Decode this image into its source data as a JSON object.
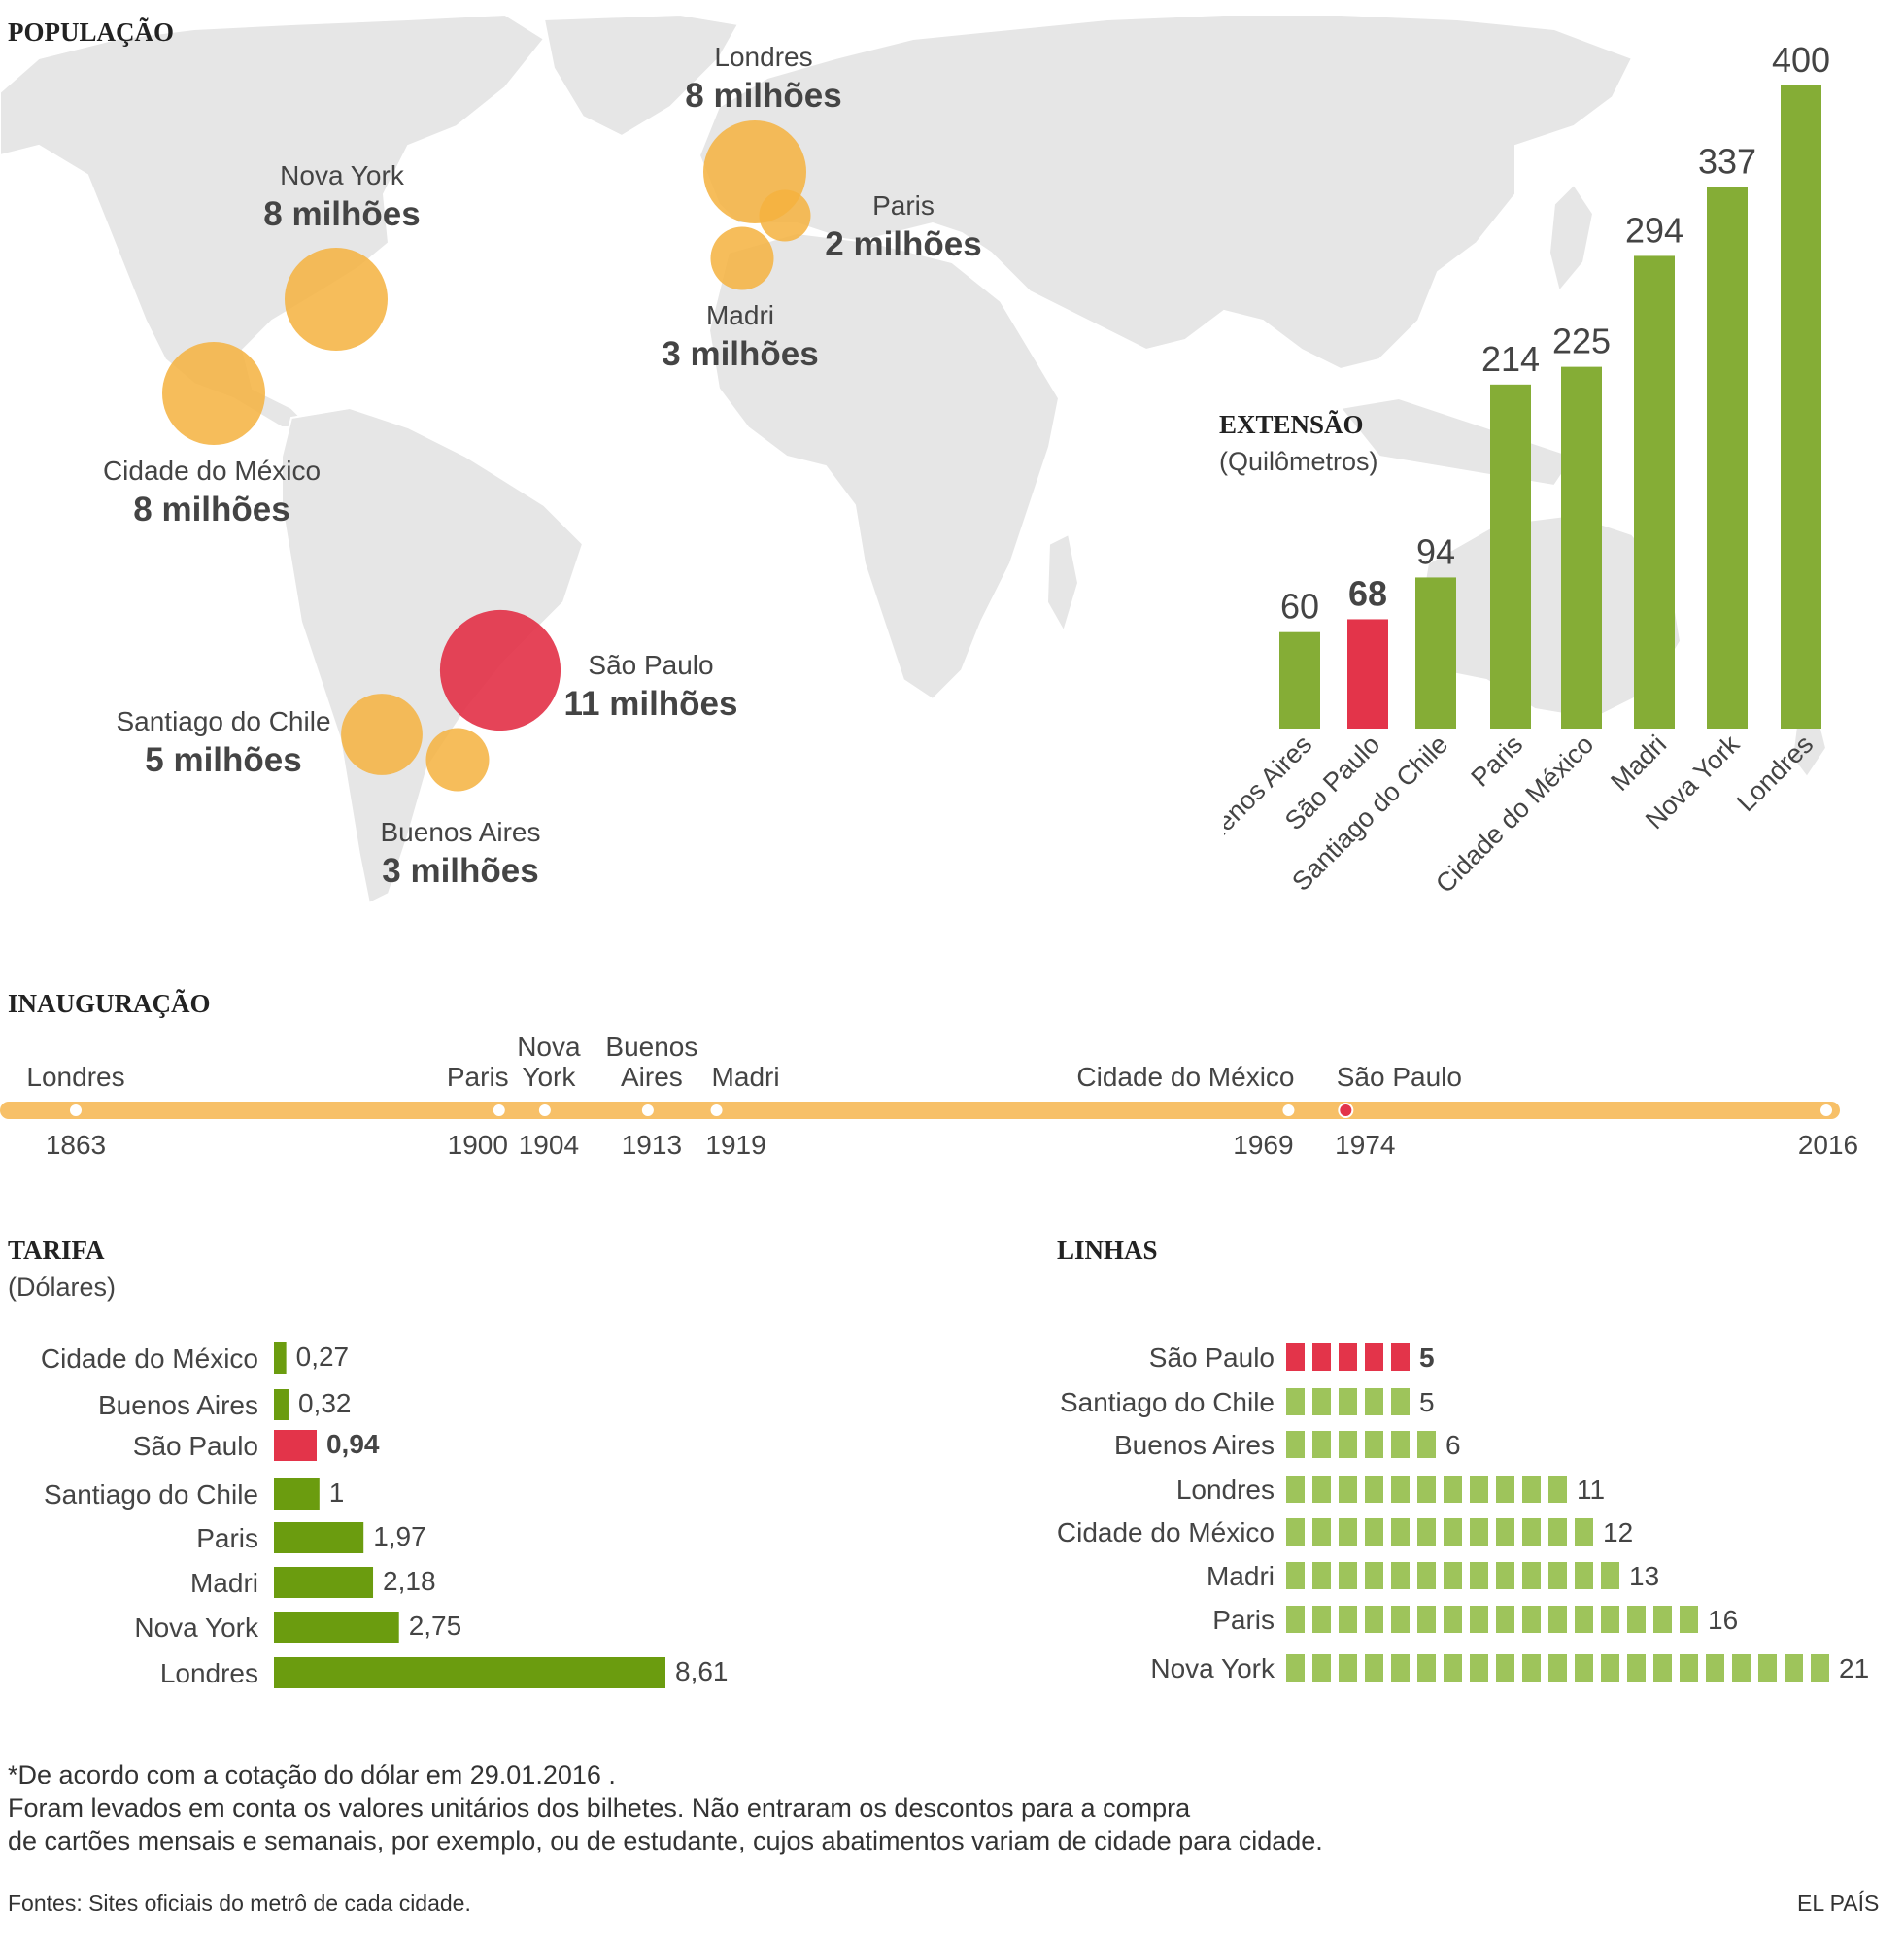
{
  "population": {
    "title": "POPULAÇÃO",
    "cities": [
      {
        "name": "Londres",
        "value_label": "8 milhões",
        "millions": 8
      },
      {
        "name": "Nova York",
        "value_label": "8 milhões",
        "millions": 8
      },
      {
        "name": "Paris",
        "value_label": "2 milhões",
        "millions": 2
      },
      {
        "name": "Madri",
        "value_label": "3 milhões",
        "millions": 3
      },
      {
        "name": "Cidade do México",
        "value_label": "8 milhões",
        "millions": 8
      },
      {
        "name": "São Paulo",
        "value_label": "11 milhões",
        "millions": 11
      },
      {
        "name": "Santiago do Chile",
        "value_label": "5 milhões",
        "millions": 5
      },
      {
        "name": "Buenos Aires",
        "value_label": "3 milhões",
        "millions": 3
      }
    ]
  },
  "extension": {
    "title": "EXTENSÃO",
    "subtitle": "(Quilômetros)"
  },
  "inauguration": {
    "title": "INAUGURAÇÃO"
  },
  "fare": {
    "title": "TARIFA",
    "subtitle": "(Dólares)"
  },
  "lines": {
    "title": "LINHAS"
  },
  "footnote": {
    "line1": "*De acordo com a cotação do dólar em 29.01.2016 .",
    "line2": "Foram levados em conta os valores unitários dos bilhetes. Não entraram os descontos para a compra",
    "line3": "de cartões mensais e semanais, por exemplo, ou de estudante, cujos abatimentos variam de cidade para cidade."
  },
  "source": "Fontes: Sites oficiais do metrô de cada cidade.",
  "brand": "EL PAÍS",
  "colors": {
    "bubble": "#f4b13e",
    "highlight": "#e3344a",
    "bar": "#85ad36",
    "fare_bar": "#6b9c0f",
    "lines_block": "#9ec45b",
    "timeline": "#f7c068",
    "map": "#e6e6e6"
  },
  "chart_data": [
    {
      "type": "bar",
      "title": "EXTENSÃO",
      "ylabel": "(Quilômetros)",
      "categories": [
        "Buenos Aires",
        "São Paulo",
        "Santiago do Chile",
        "Paris",
        "Cidade do México",
        "Madri",
        "Nova York",
        "Londres"
      ],
      "values": [
        60,
        68,
        94,
        214,
        225,
        294,
        337,
        400
      ],
      "labels": [
        "60",
        "68",
        "94",
        "214",
        "225",
        "294",
        "337",
        "400"
      ],
      "highlight": "São Paulo",
      "ylim": [
        0,
        400
      ]
    },
    {
      "type": "timeline",
      "title": "INAUGURAÇÃO",
      "range": [
        1863,
        2016
      ],
      "events": [
        {
          "city": "Londres",
          "year": 1863
        },
        {
          "city": "Paris",
          "year": 1900
        },
        {
          "city": "Nova York",
          "year": 1904
        },
        {
          "city": "Buenos Aires",
          "year": 1913
        },
        {
          "city": "Madri",
          "year": 1919
        },
        {
          "city": "Cidade do México",
          "year": 1969
        },
        {
          "city": "São Paulo",
          "year": 1974
        }
      ],
      "end_label": "2016",
      "highlight": "São Paulo"
    },
    {
      "type": "bar",
      "orientation": "horizontal",
      "title": "TARIFA",
      "xlabel": "(Dólares)",
      "categories": [
        "Cidade do México",
        "Buenos Aires",
        "São Paulo",
        "Santiago do Chile",
        "Paris",
        "Madri",
        "Nova York",
        "Londres"
      ],
      "values": [
        0.27,
        0.32,
        0.94,
        1,
        1.97,
        2.18,
        2.75,
        8.61
      ],
      "labels": [
        "0,27",
        "0,32",
        "0,94",
        "1",
        "1,97",
        "2,18",
        "2,75",
        "8,61"
      ],
      "highlight": "São Paulo"
    },
    {
      "type": "bar",
      "orientation": "horizontal",
      "title": "LINHAS",
      "categories": [
        "São Paulo",
        "Santiago do Chile",
        "Buenos Aires",
        "Londres",
        "Cidade do México",
        "Madri",
        "Paris",
        "Nova York"
      ],
      "values": [
        5,
        5,
        6,
        11,
        12,
        13,
        16,
        21
      ],
      "labels": [
        "5",
        "5",
        "6",
        "11",
        "12",
        "13",
        "16",
        "21"
      ],
      "highlight": "São Paulo"
    }
  ]
}
